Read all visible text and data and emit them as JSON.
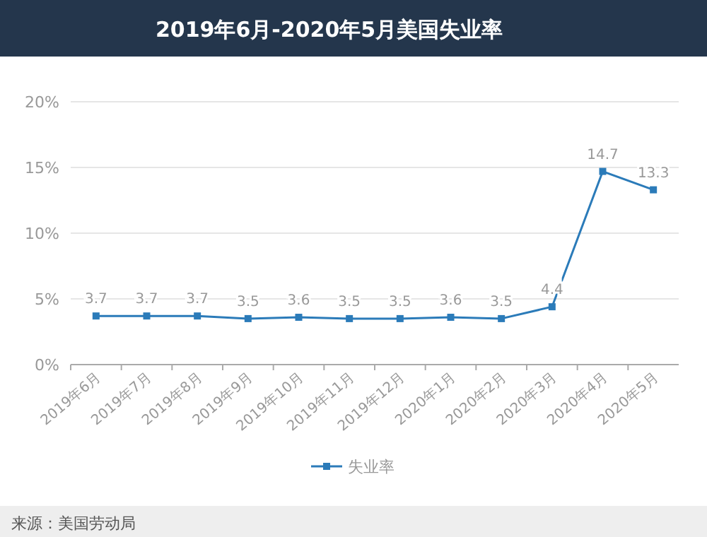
{
  "chart_data": {
    "type": "line",
    "title": "2019年6月-2020年5月美国失业率",
    "categories": [
      "2019年6月",
      "2019年7月",
      "2019年8月",
      "2019年9月",
      "2019年10月",
      "2019年11月",
      "2019年12月",
      "2020年1月",
      "2020年2月",
      "2020年3月",
      "2020年4月",
      "2020年5月"
    ],
    "series": [
      {
        "name": "失业率",
        "color": "#2b7bb9",
        "values": [
          3.7,
          3.7,
          3.7,
          3.5,
          3.6,
          3.5,
          3.5,
          3.6,
          3.5,
          4.4,
          14.7,
          13.3
        ]
      }
    ],
    "ylim": [
      0,
      20
    ],
    "yticks": [
      {
        "value": 0,
        "label": "0%"
      },
      {
        "value": 5,
        "label": "5%"
      },
      {
        "value": 10,
        "label": "10%"
      },
      {
        "value": 15,
        "label": "15%"
      },
      {
        "value": 20,
        "label": "20%"
      }
    ],
    "grid": "y",
    "legend": "bottom",
    "marker": "square",
    "data_labels": true,
    "annotations": [
      "来源：美国劳动局"
    ]
  }
}
